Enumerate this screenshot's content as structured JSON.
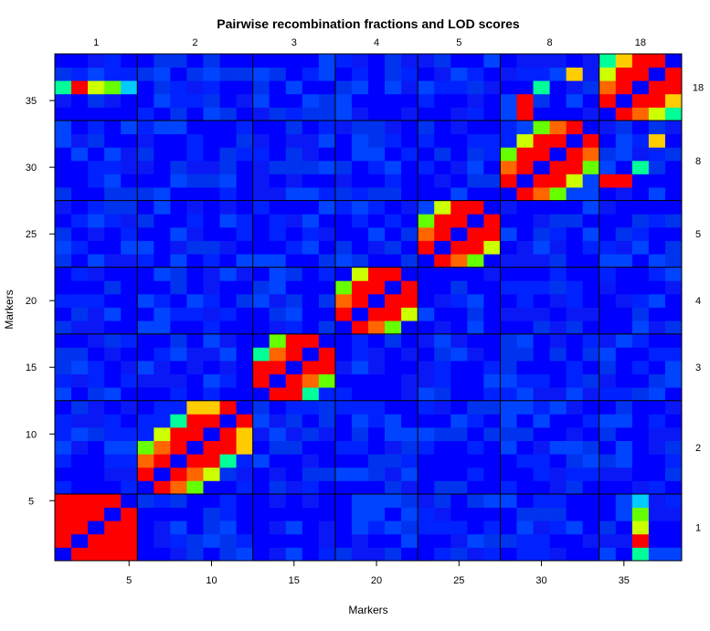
{
  "chart_data": {
    "type": "heatmap",
    "title": "Pairwise recombination fractions and LOD scores",
    "xlabel": "Markers",
    "ylabel": "Markers",
    "n_markers": 38,
    "xlim": [
      0.5,
      38.5
    ],
    "ylim": [
      0.5,
      38.5
    ],
    "x_ticks": [
      5,
      10,
      15,
      20,
      25,
      30,
      35
    ],
    "y_ticks": [
      5,
      10,
      15,
      20,
      25,
      30,
      35
    ],
    "chromosomes": [
      {
        "label": "1",
        "first": 1,
        "last": 5
      },
      {
        "label": "2",
        "first": 6,
        "last": 12
      },
      {
        "label": "3",
        "first": 13,
        "last": 17
      },
      {
        "label": "4",
        "first": 18,
        "last": 22
      },
      {
        "label": "5",
        "first": 23,
        "last": 27
      },
      {
        "label": "8",
        "first": 28,
        "last": 33
      },
      {
        "label": "18",
        "first": 34,
        "last": 38
      }
    ],
    "color_scale": [
      "#0000ff",
      "#0055ff",
      "#00ccff",
      "#00ff99",
      "#66ff00",
      "#ccff00",
      "#ffcc00",
      "#ff6600",
      "#ff0000"
    ],
    "background_color": "#0000ff",
    "strong_links": [
      [
        1,
        2,
        8
      ],
      [
        1,
        3,
        8
      ],
      [
        1,
        4,
        8
      ],
      [
        1,
        5,
        8
      ],
      [
        2,
        3,
        8
      ],
      [
        2,
        4,
        8
      ],
      [
        2,
        5,
        8
      ],
      [
        3,
        4,
        8
      ],
      [
        3,
        5,
        8
      ],
      [
        4,
        5,
        8
      ],
      [
        1,
        36,
        3
      ],
      [
        2,
        36,
        8
      ],
      [
        3,
        36,
        5
      ],
      [
        4,
        36,
        4
      ],
      [
        5,
        36,
        2
      ],
      [
        6,
        7,
        8
      ],
      [
        6,
        8,
        7
      ],
      [
        7,
        8,
        8
      ],
      [
        7,
        9,
        7
      ],
      [
        8,
        9,
        8
      ],
      [
        8,
        10,
        8
      ],
      [
        9,
        10,
        8
      ],
      [
        9,
        11,
        8
      ],
      [
        10,
        11,
        8
      ],
      [
        10,
        12,
        6
      ],
      [
        11,
        12,
        8
      ],
      [
        6,
        9,
        4
      ],
      [
        7,
        10,
        5
      ],
      [
        8,
        11,
        3
      ],
      [
        9,
        12,
        6
      ],
      [
        13,
        14,
        8
      ],
      [
        13,
        15,
        8
      ],
      [
        14,
        15,
        8
      ],
      [
        14,
        16,
        7
      ],
      [
        15,
        16,
        8
      ],
      [
        15,
        17,
        8
      ],
      [
        16,
        17,
        8
      ],
      [
        13,
        16,
        3
      ],
      [
        14,
        17,
        4
      ],
      [
        18,
        19,
        8
      ],
      [
        18,
        20,
        7
      ],
      [
        19,
        20,
        8
      ],
      [
        19,
        21,
        8
      ],
      [
        20,
        21,
        8
      ],
      [
        20,
        22,
        8
      ],
      [
        21,
        22,
        8
      ],
      [
        18,
        21,
        4
      ],
      [
        19,
        22,
        5
      ],
      [
        23,
        24,
        8
      ],
      [
        23,
        25,
        7
      ],
      [
        24,
        25,
        8
      ],
      [
        24,
        26,
        8
      ],
      [
        25,
        26,
        8
      ],
      [
        25,
        27,
        8
      ],
      [
        26,
        27,
        8
      ],
      [
        23,
        26,
        4
      ],
      [
        24,
        27,
        5
      ],
      [
        28,
        29,
        8
      ],
      [
        28,
        30,
        7
      ],
      [
        29,
        30,
        8
      ],
      [
        29,
        31,
        8
      ],
      [
        30,
        31,
        8
      ],
      [
        30,
        32,
        8
      ],
      [
        31,
        32,
        8
      ],
      [
        31,
        33,
        7
      ],
      [
        32,
        33,
        8
      ],
      [
        28,
        31,
        4
      ],
      [
        29,
        32,
        5
      ],
      [
        30,
        33,
        4
      ],
      [
        29,
        34,
        8
      ],
      [
        29,
        35,
        8
      ],
      [
        30,
        36,
        3
      ],
      [
        32,
        37,
        6
      ],
      [
        34,
        35,
        8
      ],
      [
        34,
        36,
        7
      ],
      [
        35,
        36,
        8
      ],
      [
        35,
        37,
        8
      ],
      [
        36,
        37,
        8
      ],
      [
        36,
        38,
        8
      ],
      [
        37,
        38,
        8
      ],
      [
        34,
        37,
        5
      ],
      [
        35,
        38,
        6
      ],
      [
        34,
        38,
        3
      ]
    ]
  }
}
